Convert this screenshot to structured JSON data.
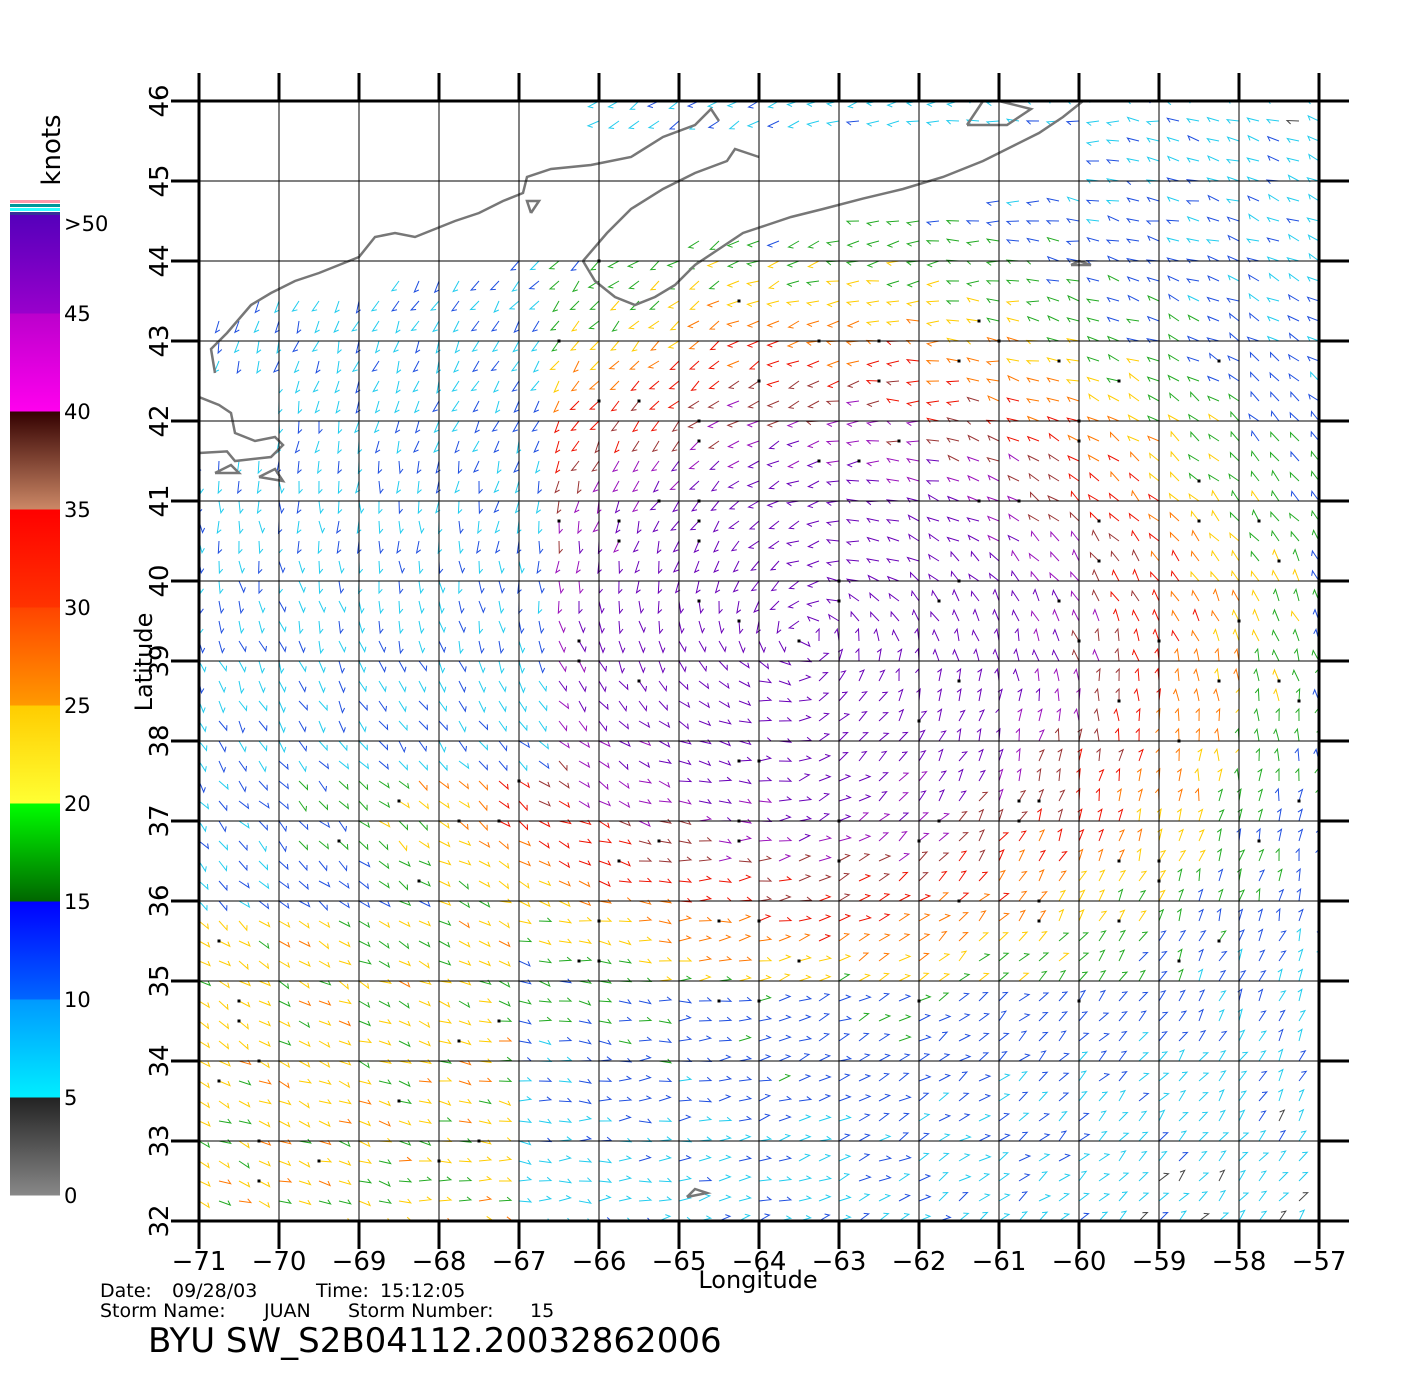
{
  "plot": {
    "lon_range": [
      -71,
      -57
    ],
    "lat_range": [
      32,
      46
    ],
    "lon_ticks": [
      -71,
      -70,
      -69,
      -68,
      -67,
      -66,
      -65,
      -64,
      -63,
      -62,
      -61,
      -60,
      -59,
      -58,
      -57
    ],
    "lat_ticks": [
      32,
      33,
      34,
      35,
      36,
      37,
      38,
      39,
      40,
      41,
      42,
      43,
      44,
      45,
      46
    ],
    "xlabel": "Longitude",
    "ylabel": "Latitude",
    "grid": true,
    "coastline_color": "#777777",
    "flag_color": "#000000"
  },
  "colorbar": {
    "unit": "knots",
    "labels": [
      "0",
      "5",
      "10",
      "15",
      "20",
      "25",
      "30",
      "35",
      "40",
      "45",
      ">50"
    ],
    "bands": [
      {
        "from": 0,
        "to": 5,
        "colors": [
          "#888888",
          "#222222"
        ]
      },
      {
        "from": 5,
        "to": 10,
        "colors": [
          "#00eeff",
          "#0099ff"
        ]
      },
      {
        "from": 10,
        "to": 15,
        "colors": [
          "#0066ff",
          "#0000ff"
        ]
      },
      {
        "from": 15,
        "to": 20,
        "colors": [
          "#006600",
          "#00ff00"
        ]
      },
      {
        "from": 20,
        "to": 25,
        "colors": [
          "#ffff33",
          "#ffcc00"
        ]
      },
      {
        "from": 25,
        "to": 30,
        "colors": [
          "#ff9900",
          "#ff4400"
        ]
      },
      {
        "from": 30,
        "to": 35,
        "colors": [
          "#ff3300",
          "#ff0000"
        ]
      },
      {
        "from": 35,
        "to": 40,
        "colors": [
          "#cc8866",
          "#330000"
        ]
      },
      {
        "from": 40,
        "to": 45,
        "colors": [
          "#ff00ee",
          "#bb00cc"
        ]
      },
      {
        "from": 45,
        "to": 50,
        "colors": [
          "#9900cc",
          "#5500bb"
        ]
      }
    ],
    "top_stripes": [
      "#ff99aa",
      "#009999",
      "#33ffff",
      "#333399"
    ]
  },
  "wind_field": {
    "storm_center": {
      "lon": -63.4,
      "lat": 39.3
    },
    "speed_bins_kt": [
      5,
      10,
      15,
      20,
      25,
      30,
      35,
      40,
      45
    ],
    "bin_colors": [
      "#444444",
      "#22ccee",
      "#1f4fe0",
      "#22aa22",
      "#ffcc00",
      "#ff7700",
      "#ee1100",
      "#993333",
      "#9911bb",
      "#6a00b8"
    ]
  },
  "info": {
    "date_label": "Date:",
    "date": "09/28/03",
    "time_label": "Time:",
    "time": "15:12:05",
    "storm_name_label": "Storm  Name:",
    "storm_name": "JUAN",
    "storm_number_label": "Storm  Number:",
    "storm_number": "15",
    "file_title": "BYU  SW_S2B04112.20032862006"
  }
}
